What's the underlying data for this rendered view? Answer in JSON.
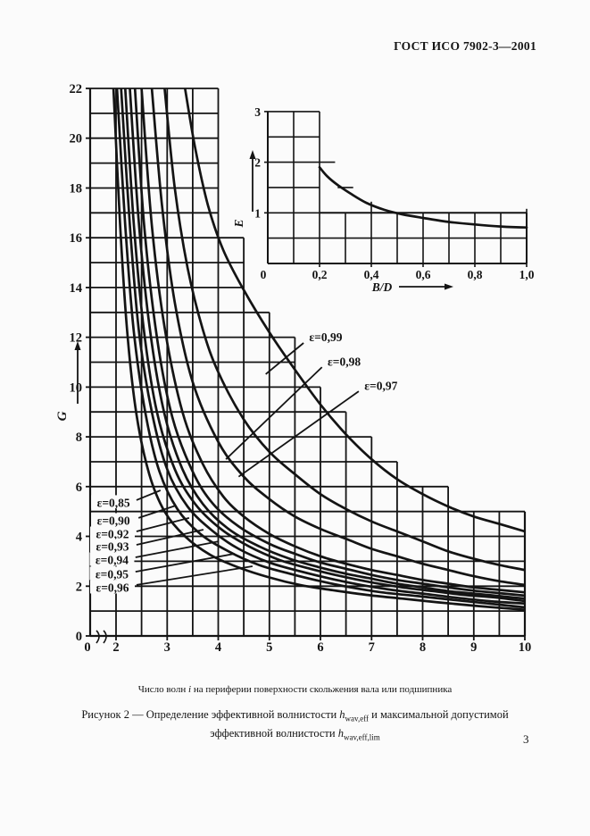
{
  "page": {
    "header_title": "ГОСТ ИСО 7902-3—2001",
    "page_number": "3"
  },
  "captions": {
    "axis_note": [
      {
        "t": "Число волн "
      },
      {
        "t": "i",
        "i": true
      },
      {
        "t": " на периферии поверхности скольжения вала или подшипника"
      }
    ],
    "figure_line1": [
      {
        "t": "Рисунок 2 — Определение эффективной волнистости "
      },
      {
        "t": "h",
        "i": true
      },
      {
        "t": "wav,eff",
        "sub": true
      },
      {
        "t": " и максимальной допустимой"
      }
    ],
    "figure_line2": [
      {
        "t": "эффективной волнистости "
      },
      {
        "t": "h",
        "i": true
      },
      {
        "t": "wav,eff,lim",
        "sub": true
      }
    ]
  },
  "chart_data": [
    {
      "name": "main",
      "type": "line",
      "title": "",
      "xlabel": "Число волн i",
      "ylabel": "G",
      "xlim": [
        0,
        10
      ],
      "ylim": [
        0,
        22
      ],
      "axis_break_x": true,
      "grid": "stepped",
      "x_tick_labels": [
        "0",
        "2",
        "3",
        "4",
        "5",
        "6",
        "7",
        "8",
        "9",
        "10"
      ],
      "x_tick_values": [
        0,
        2,
        3,
        4,
        5,
        6,
        7,
        8,
        9,
        10
      ],
      "y_tick_values": [
        0,
        2,
        4,
        6,
        8,
        10,
        12,
        14,
        16,
        18,
        20,
        22
      ],
      "column_tops": [
        22,
        22,
        22,
        22,
        16,
        13,
        12,
        10,
        9,
        8,
        7,
        6,
        6,
        5,
        5,
        5
      ],
      "series": [
        {
          "name": "ε=0,99",
          "eps": 0.99,
          "points": [
            [
              3.35,
              22
            ],
            [
              3.55,
              19.6
            ],
            [
              3.8,
              17.3
            ],
            [
              4.1,
              15.5
            ],
            [
              4.5,
              13.9
            ],
            [
              5,
              12.2
            ],
            [
              5.5,
              10.7
            ],
            [
              6,
              9.3
            ],
            [
              6.5,
              8.1
            ],
            [
              7,
              7.1
            ],
            [
              7.5,
              6.3
            ],
            [
              8,
              5.7
            ],
            [
              8.5,
              5.2
            ],
            [
              9,
              4.8
            ],
            [
              9.5,
              4.5
            ],
            [
              10,
              4.2
            ]
          ]
        },
        {
          "name": "ε=0,98",
          "eps": 0.98,
          "points": [
            [
              2.95,
              22
            ],
            [
              3.15,
              18
            ],
            [
              3.4,
              14.8
            ],
            [
              3.7,
              12.3
            ],
            [
              4,
              10.6
            ],
            [
              4.5,
              8.7
            ],
            [
              5,
              7.4
            ],
            [
              5.5,
              6.5
            ],
            [
              6,
              5.7
            ],
            [
              6.5,
              5.1
            ],
            [
              7,
              4.6
            ],
            [
              7.5,
              4.2
            ],
            [
              8,
              3.8
            ],
            [
              8.5,
              3.4
            ],
            [
              9,
              3.1
            ],
            [
              9.5,
              2.85
            ],
            [
              10,
              2.65
            ]
          ]
        },
        {
          "name": "ε=0,97",
          "eps": 0.97,
          "points": [
            [
              2.7,
              22
            ],
            [
              2.9,
              17.3
            ],
            [
              3.15,
              13.4
            ],
            [
              3.5,
              10.2
            ],
            [
              4,
              7.8
            ],
            [
              4.5,
              6.4
            ],
            [
              5,
              5.5
            ],
            [
              5.5,
              4.8
            ],
            [
              6,
              4.3
            ],
            [
              6.5,
              3.9
            ],
            [
              7,
              3.5
            ],
            [
              7.5,
              3.2
            ],
            [
              8,
              2.9
            ],
            [
              8.5,
              2.65
            ],
            [
              9,
              2.4
            ],
            [
              9.5,
              2.2
            ],
            [
              10,
              2.05
            ]
          ]
        },
        {
          "name": "ε=0,96",
          "eps": 0.96,
          "points": [
            [
              2.5,
              22
            ],
            [
              2.7,
              16.5
            ],
            [
              2.95,
              12.4
            ],
            [
              3.3,
              9.0
            ],
            [
              3.7,
              6.9
            ],
            [
              4.1,
              5.6
            ],
            [
              4.5,
              4.8
            ],
            [
              5,
              4.1
            ],
            [
              5.5,
              3.6
            ],
            [
              6,
              3.2
            ],
            [
              6.5,
              2.9
            ],
            [
              7,
              2.65
            ],
            [
              7.5,
              2.45
            ],
            [
              8,
              2.25
            ],
            [
              8.5,
              2.1
            ],
            [
              9,
              1.95
            ],
            [
              9.5,
              1.85
            ],
            [
              10,
              1.75
            ]
          ]
        },
        {
          "name": "ε=0,95",
          "eps": 0.95,
          "points": [
            [
              2.37,
              22
            ],
            [
              2.55,
              16.5
            ],
            [
              2.8,
              12.0
            ],
            [
              3.1,
              8.8
            ],
            [
              3.5,
              6.6
            ],
            [
              3.9,
              5.3
            ],
            [
              4.4,
              4.4
            ],
            [
              5,
              3.7
            ],
            [
              5.5,
              3.3
            ],
            [
              6,
              2.95
            ],
            [
              6.5,
              2.7
            ],
            [
              7,
              2.45
            ],
            [
              7.5,
              2.25
            ],
            [
              8,
              2.1
            ],
            [
              8.5,
              1.95
            ],
            [
              9,
              1.82
            ],
            [
              9.5,
              1.72
            ],
            [
              10,
              1.62
            ]
          ]
        },
        {
          "name": "ε=0,94",
          "eps": 0.94,
          "points": [
            [
              2.27,
              22
            ],
            [
              2.45,
              16.5
            ],
            [
              2.67,
              12.2
            ],
            [
              2.95,
              8.9
            ],
            [
              3.3,
              6.7
            ],
            [
              3.7,
              5.3
            ],
            [
              4.2,
              4.3
            ],
            [
              4.8,
              3.6
            ],
            [
              5.4,
              3.1
            ],
            [
              6,
              2.75
            ],
            [
              6.5,
              2.5
            ],
            [
              7,
              2.3
            ],
            [
              7.5,
              2.1
            ],
            [
              8,
              1.95
            ],
            [
              8.5,
              1.8
            ],
            [
              9,
              1.7
            ],
            [
              9.5,
              1.6
            ],
            [
              10,
              1.5
            ]
          ]
        },
        {
          "name": "ε=0,93",
          "eps": 0.93,
          "points": [
            [
              2.18,
              22
            ],
            [
              2.35,
              16.5
            ],
            [
              2.55,
              12.2
            ],
            [
              2.8,
              9.0
            ],
            [
              3.15,
              6.7
            ],
            [
              3.55,
              5.3
            ],
            [
              4.05,
              4.3
            ],
            [
              4.6,
              3.6
            ],
            [
              5.2,
              3.05
            ],
            [
              5.8,
              2.7
            ],
            [
              6.4,
              2.4
            ],
            [
              7,
              2.15
            ],
            [
              7.6,
              1.95
            ],
            [
              8.2,
              1.8
            ],
            [
              8.8,
              1.65
            ],
            [
              9.4,
              1.55
            ],
            [
              10,
              1.4
            ]
          ]
        },
        {
          "name": "ε=0,92",
          "eps": 0.92,
          "points": [
            [
              2.1,
              22
            ],
            [
              2.27,
              16.5
            ],
            [
              2.45,
              12.2
            ],
            [
              2.7,
              9.0
            ],
            [
              3.0,
              6.7
            ],
            [
              3.4,
              5.2
            ],
            [
              3.9,
              4.2
            ],
            [
              4.4,
              3.5
            ],
            [
              5,
              2.95
            ],
            [
              5.6,
              2.6
            ],
            [
              6.2,
              2.3
            ],
            [
              6.8,
              2.05
            ],
            [
              7.4,
              1.85
            ],
            [
              8,
              1.7
            ],
            [
              8.6,
              1.55
            ],
            [
              9.3,
              1.4
            ],
            [
              10,
              1.3
            ]
          ]
        },
        {
          "name": "ε=0,90",
          "eps": 0.9,
          "points": [
            [
              2.02,
              22
            ],
            [
              2.18,
              16.5
            ],
            [
              2.35,
              12.2
            ],
            [
              2.58,
              8.9
            ],
            [
              2.85,
              6.6
            ],
            [
              3.2,
              5.1
            ],
            [
              3.65,
              4.1
            ],
            [
              4.2,
              3.4
            ],
            [
              4.8,
              2.85
            ],
            [
              5.4,
              2.5
            ],
            [
              6,
              2.2
            ],
            [
              6.6,
              1.95
            ],
            [
              7.2,
              1.75
            ],
            [
              7.9,
              1.6
            ],
            [
              8.6,
              1.45
            ],
            [
              9.3,
              1.3
            ],
            [
              10,
              1.15
            ]
          ]
        },
        {
          "name": "ε=0,85",
          "eps": 0.85,
          "points": [
            [
              1.95,
              22
            ],
            [
              2.08,
              16.5
            ],
            [
              2.22,
              12.2
            ],
            [
              2.4,
              8.9
            ],
            [
              2.65,
              6.5
            ],
            [
              2.95,
              5.0
            ],
            [
              3.35,
              4.0
            ],
            [
              3.85,
              3.25
            ],
            [
              4.4,
              2.75
            ],
            [
              5,
              2.35
            ],
            [
              5.6,
              2.05
            ],
            [
              6.2,
              1.85
            ],
            [
              6.9,
              1.65
            ],
            [
              7.6,
              1.5
            ],
            [
              8.3,
              1.35
            ],
            [
              9.1,
              1.2
            ],
            [
              10,
              1.05
            ]
          ]
        }
      ],
      "labels_left": [
        {
          "text": "ε=0,85",
          "tx": 1.95,
          "ty": 5.35,
          "leader": [
            [
              2.4,
              5.46
            ],
            [
              2.87,
              5.85
            ]
          ]
        },
        {
          "text": "ε=0,90",
          "tx": 1.95,
          "ty": 4.63,
          "leader": [
            [
              2.44,
              4.74
            ],
            [
              3.17,
              5.24
            ]
          ]
        },
        {
          "text": "ε=0,92",
          "tx": 1.93,
          "ty": 4.09,
          "leader": [
            [
              2.4,
              4.2
            ],
            [
              3.43,
              4.74
            ]
          ]
        },
        {
          "text": "ε=0,93",
          "tx": 1.93,
          "ty": 3.59,
          "leader": [
            [
              2.4,
              3.66
            ],
            [
              3.71,
              4.27
            ]
          ]
        },
        {
          "text": "ε=0,94",
          "tx": 1.92,
          "ty": 3.05,
          "leader": [
            [
              2.38,
              3.16
            ],
            [
              4.01,
              3.8
            ]
          ]
        },
        {
          "text": "ε=0,95",
          "tx": 1.92,
          "ty": 2.48,
          "leader": [
            [
              2.38,
              2.58
            ],
            [
              4.32,
              3.3
            ]
          ]
        },
        {
          "text": "ε=0,96",
          "tx": 1.93,
          "ty": 1.94,
          "leader": [
            [
              2.4,
              2.05
            ],
            [
              4.67,
              2.8
            ]
          ]
        }
      ],
      "labels_right": [
        {
          "text": "ε=0,99",
          "tx": 5.78,
          "ty": 12.0,
          "leader": [
            [
              5.67,
              11.77
            ],
            [
              4.93,
              10.52
            ]
          ]
        },
        {
          "text": "ε=0,98",
          "tx": 6.14,
          "ty": 11.02,
          "leader": [
            [
              6.03,
              10.8
            ],
            [
              4.15,
              7.1
            ]
          ]
        },
        {
          "text": "ε=0,97",
          "tx": 6.86,
          "ty": 10.05,
          "leader": [
            [
              6.75,
              9.83
            ],
            [
              4.4,
              6.4
            ]
          ]
        }
      ]
    },
    {
      "name": "inset",
      "type": "line",
      "title": "",
      "xlabel": "B/D",
      "ylabel": "E",
      "xlim": [
        0,
        1.0
      ],
      "ylim": [
        0,
        3
      ],
      "grid": "stepped",
      "x_tick_labels": [
        "0",
        "0,2",
        "0,4",
        "0,6",
        "0,8",
        "1,0"
      ],
      "x_tick_values": [
        0,
        0.2,
        0.4,
        0.6,
        0.8,
        1.0
      ],
      "y_tick_values": [
        0,
        1,
        2,
        3
      ],
      "tall_block_xmax": 0.2,
      "tall_block_ymax": 3,
      "low_block_ymax": 1,
      "curve": [
        [
          0.2,
          1.9
        ],
        [
          0.23,
          1.72
        ],
        [
          0.27,
          1.55
        ],
        [
          0.32,
          1.38
        ],
        [
          0.38,
          1.2
        ],
        [
          0.45,
          1.06
        ],
        [
          0.52,
          0.97
        ],
        [
          0.6,
          0.9
        ],
        [
          0.7,
          0.82
        ],
        [
          0.8,
          0.77
        ],
        [
          0.9,
          0.73
        ],
        [
          1.0,
          0.71
        ]
      ]
    }
  ],
  "style": {
    "ink": "#141414",
    "paper": "#fbfbfb"
  }
}
